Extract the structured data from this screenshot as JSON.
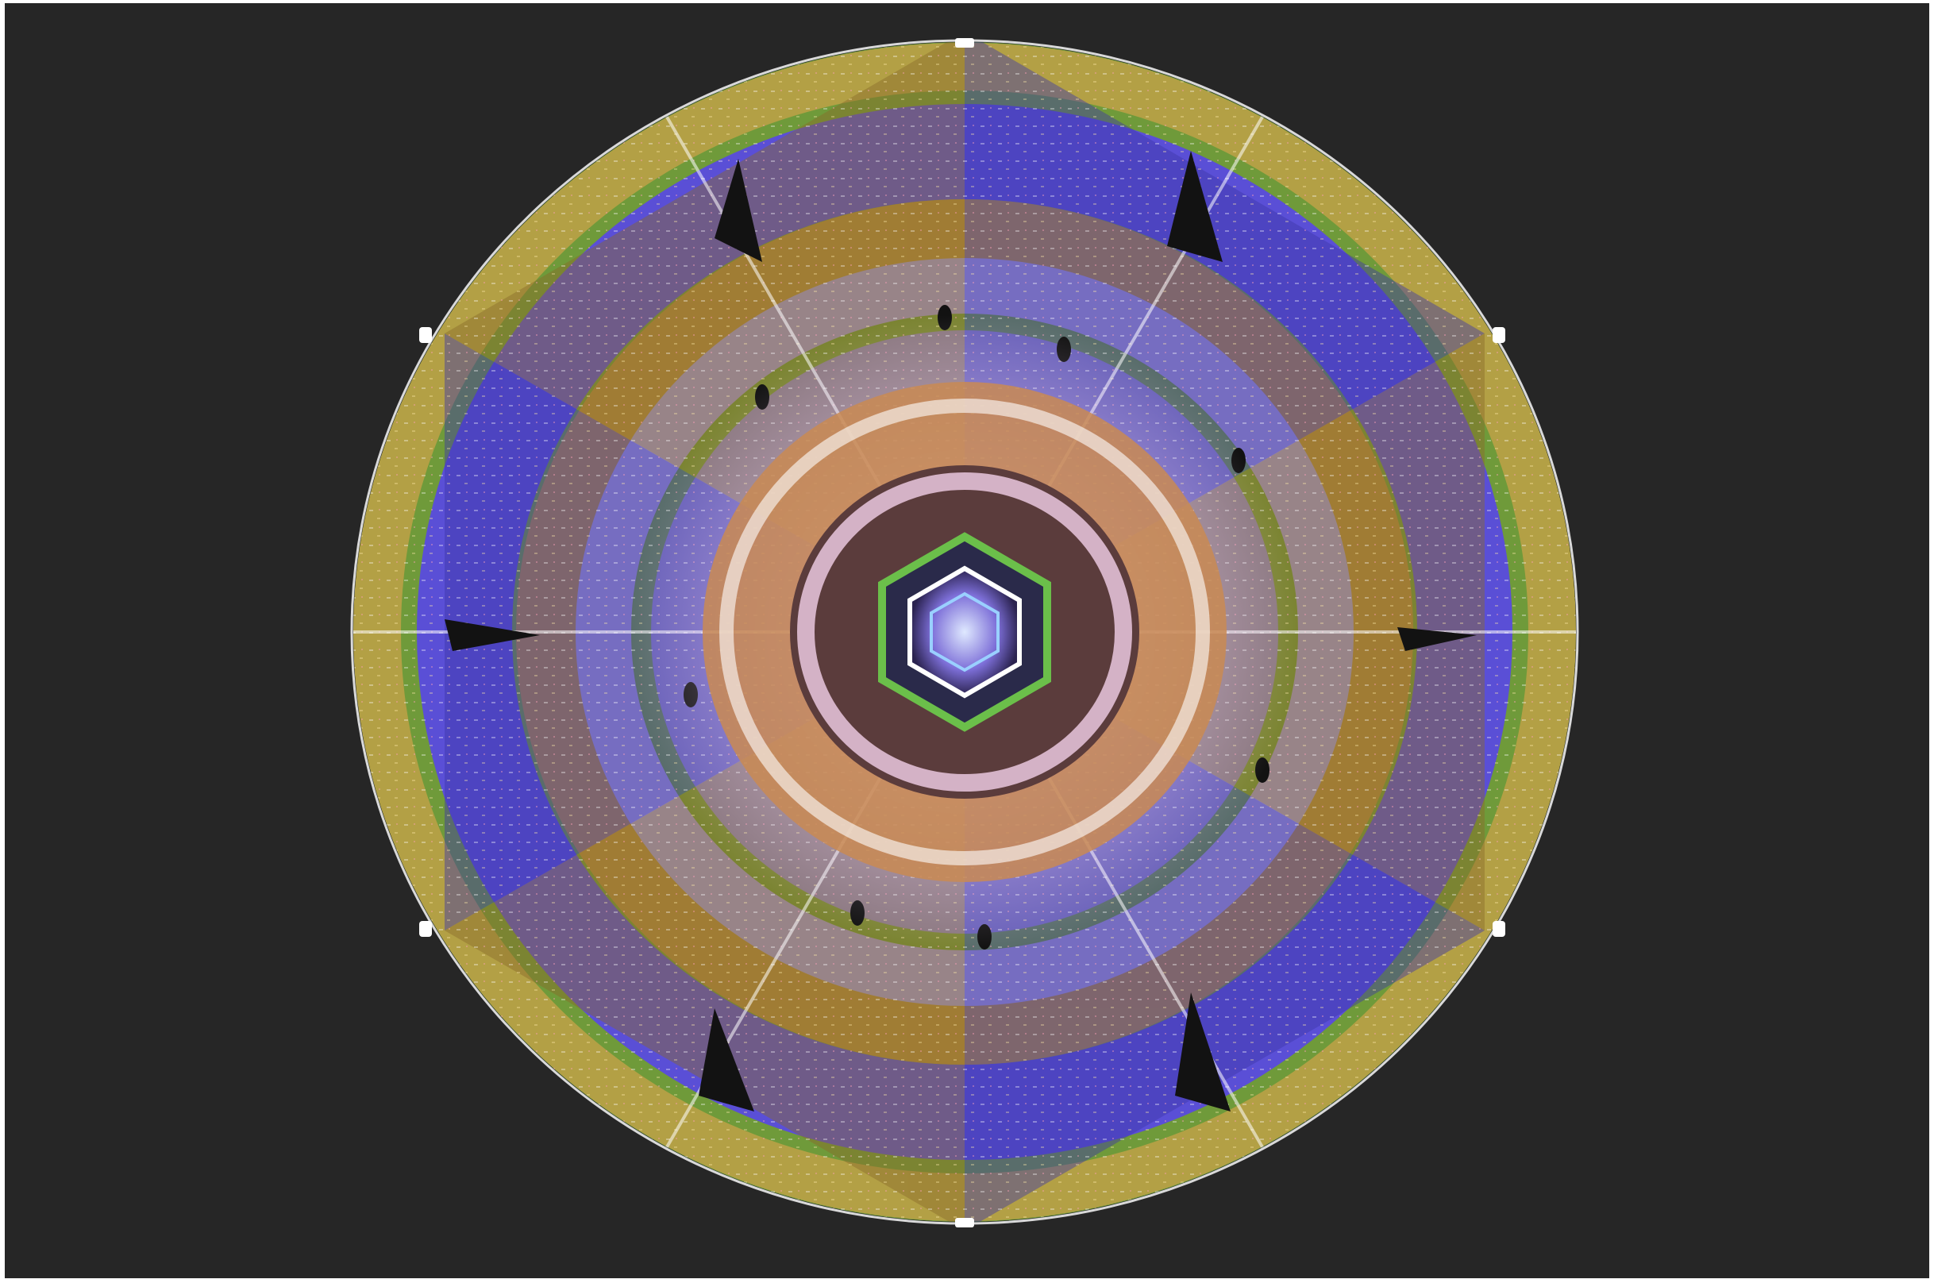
{
  "image": {
    "subject": "kaleidoscopic-mirrored-room",
    "background_color": "#262626",
    "palette": {
      "violet": "#5a4fd6",
      "lavender": "#b9a6e6",
      "green": "#6f9a3a",
      "olive": "#b7a54a",
      "orange": "#d9823a",
      "pink": "#f1c7e8",
      "white": "#ffffff"
    },
    "mirror_segments": 6
  }
}
